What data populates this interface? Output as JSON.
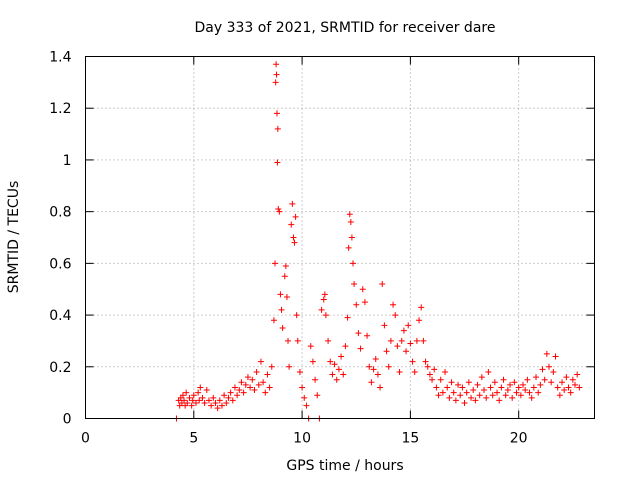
{
  "chart_data": {
    "type": "scatter",
    "title": "Day 333 of 2021, SRMTID for receiver dare",
    "xlabel": "GPS time / hours",
    "ylabel": "SRMTID / TECUs",
    "xlim": [
      0,
      23.5
    ],
    "ylim": [
      0,
      1.4
    ],
    "xticks": [
      0,
      5,
      10,
      15,
      20
    ],
    "xtick_labels": [
      "0",
      "5",
      "10",
      "15",
      "20"
    ],
    "yticks": [
      0,
      0.2,
      0.4,
      0.6,
      0.8,
      1.0,
      1.2,
      1.4
    ],
    "ytick_labels": [
      "0",
      "0.2",
      "0.4",
      "0.6",
      "0.8",
      "1",
      "1.2",
      "1.4"
    ],
    "grid": true,
    "marker": "+",
    "color": "#ff0000",
    "series": [
      {
        "name": "SRMTID",
        "points": [
          [
            4.2,
            0.0
          ],
          [
            4.3,
            0.07
          ],
          [
            4.35,
            0.05
          ],
          [
            4.4,
            0.08
          ],
          [
            4.45,
            0.06
          ],
          [
            4.5,
            0.09
          ],
          [
            4.55,
            0.07
          ],
          [
            4.6,
            0.05
          ],
          [
            4.65,
            0.1
          ],
          [
            4.7,
            0.06
          ],
          [
            4.8,
            0.08
          ],
          [
            4.9,
            0.05
          ],
          [
            4.95,
            0.07
          ],
          [
            5.0,
            0.09
          ],
          [
            5.1,
            0.06
          ],
          [
            5.2,
            0.1
          ],
          [
            5.25,
            0.07
          ],
          [
            5.3,
            0.12
          ],
          [
            5.4,
            0.08
          ],
          [
            5.5,
            0.06
          ],
          [
            5.6,
            0.11
          ],
          [
            5.7,
            0.07
          ],
          [
            5.8,
            0.05
          ],
          [
            5.9,
            0.08
          ],
          [
            6.0,
            0.06
          ],
          [
            6.1,
            0.04
          ],
          [
            6.2,
            0.07
          ],
          [
            6.3,
            0.05
          ],
          [
            6.4,
            0.09
          ],
          [
            6.5,
            0.06
          ],
          [
            6.6,
            0.08
          ],
          [
            6.7,
            0.1
          ],
          [
            6.8,
            0.07
          ],
          [
            6.9,
            0.12
          ],
          [
            7.0,
            0.09
          ],
          [
            7.1,
            0.11
          ],
          [
            7.2,
            0.14
          ],
          [
            7.3,
            0.1
          ],
          [
            7.4,
            0.13
          ],
          [
            7.5,
            0.16
          ],
          [
            7.6,
            0.12
          ],
          [
            7.7,
            0.15
          ],
          [
            7.8,
            0.11
          ],
          [
            7.9,
            0.18
          ],
          [
            8.0,
            0.13
          ],
          [
            8.1,
            0.22
          ],
          [
            8.2,
            0.14
          ],
          [
            8.3,
            0.1
          ],
          [
            8.4,
            0.17
          ],
          [
            8.5,
            0.12
          ],
          [
            8.6,
            0.2
          ],
          [
            8.7,
            0.38
          ],
          [
            8.75,
            0.6
          ],
          [
            8.78,
            1.3
          ],
          [
            8.8,
            1.37
          ],
          [
            8.82,
            1.33
          ],
          [
            8.84,
            1.18
          ],
          [
            8.86,
            0.99
          ],
          [
            8.88,
            1.12
          ],
          [
            8.9,
            0.81
          ],
          [
            8.95,
            0.8
          ],
          [
            9.0,
            0.48
          ],
          [
            9.05,
            0.42
          ],
          [
            9.1,
            0.35
          ],
          [
            9.2,
            0.55
          ],
          [
            9.25,
            0.59
          ],
          [
            9.3,
            0.47
          ],
          [
            9.35,
            0.3
          ],
          [
            9.4,
            0.2
          ],
          [
            9.5,
            0.75
          ],
          [
            9.55,
            0.83
          ],
          [
            9.6,
            0.7
          ],
          [
            9.65,
            0.68
          ],
          [
            9.7,
            0.78
          ],
          [
            9.75,
            0.4
          ],
          [
            9.8,
            0.3
          ],
          [
            9.9,
            0.18
          ],
          [
            10.0,
            0.12
          ],
          [
            10.1,
            0.08
          ],
          [
            10.2,
            0.05
          ],
          [
            10.3,
            0.0
          ],
          [
            10.4,
            0.28
          ],
          [
            10.5,
            0.22
          ],
          [
            10.6,
            0.15
          ],
          [
            10.7,
            0.09
          ],
          [
            10.8,
            0.0
          ],
          [
            10.9,
            0.42
          ],
          [
            11.0,
            0.46
          ],
          [
            11.05,
            0.48
          ],
          [
            11.1,
            0.4
          ],
          [
            11.2,
            0.3
          ],
          [
            11.3,
            0.22
          ],
          [
            11.4,
            0.17
          ],
          [
            11.5,
            0.21
          ],
          [
            11.6,
            0.15
          ],
          [
            11.7,
            0.19
          ],
          [
            11.8,
            0.24
          ],
          [
            11.9,
            0.17
          ],
          [
            12.0,
            0.28
          ],
          [
            12.1,
            0.39
          ],
          [
            12.15,
            0.66
          ],
          [
            12.2,
            0.79
          ],
          [
            12.25,
            0.76
          ],
          [
            12.3,
            0.7
          ],
          [
            12.35,
            0.6
          ],
          [
            12.4,
            0.52
          ],
          [
            12.5,
            0.44
          ],
          [
            12.6,
            0.33
          ],
          [
            12.7,
            0.27
          ],
          [
            12.8,
            0.5
          ],
          [
            12.9,
            0.45
          ],
          [
            13.0,
            0.32
          ],
          [
            13.1,
            0.2
          ],
          [
            13.2,
            0.14
          ],
          [
            13.3,
            0.19
          ],
          [
            13.4,
            0.23
          ],
          [
            13.5,
            0.17
          ],
          [
            13.6,
            0.12
          ],
          [
            13.7,
            0.52
          ],
          [
            13.8,
            0.36
          ],
          [
            13.9,
            0.26
          ],
          [
            14.0,
            0.2
          ],
          [
            14.1,
            0.3
          ],
          [
            14.2,
            0.44
          ],
          [
            14.3,
            0.4
          ],
          [
            14.4,
            0.28
          ],
          [
            14.5,
            0.18
          ],
          [
            14.6,
            0.3
          ],
          [
            14.7,
            0.34
          ],
          [
            14.8,
            0.26
          ],
          [
            14.9,
            0.36
          ],
          [
            15.0,
            0.29
          ],
          [
            15.1,
            0.22
          ],
          [
            15.2,
            0.18
          ],
          [
            15.3,
            0.3
          ],
          [
            15.4,
            0.38
          ],
          [
            15.5,
            0.43
          ],
          [
            15.6,
            0.3
          ],
          [
            15.7,
            0.22
          ],
          [
            15.8,
            0.2
          ],
          [
            15.9,
            0.17
          ],
          [
            16.0,
            0.15
          ],
          [
            16.1,
            0.19
          ],
          [
            16.2,
            0.12
          ],
          [
            16.3,
            0.09
          ],
          [
            16.4,
            0.15
          ],
          [
            16.5,
            0.1
          ],
          [
            16.6,
            0.18
          ],
          [
            16.7,
            0.12
          ],
          [
            16.8,
            0.08
          ],
          [
            16.9,
            0.14
          ],
          [
            17.0,
            0.1
          ],
          [
            17.1,
            0.07
          ],
          [
            17.2,
            0.13
          ],
          [
            17.3,
            0.09
          ],
          [
            17.4,
            0.12
          ],
          [
            17.5,
            0.06
          ],
          [
            17.6,
            0.1
          ],
          [
            17.7,
            0.14
          ],
          [
            17.8,
            0.08
          ],
          [
            17.9,
            0.11
          ],
          [
            18.0,
            0.07
          ],
          [
            18.1,
            0.13
          ],
          [
            18.2,
            0.09
          ],
          [
            18.3,
            0.16
          ],
          [
            18.4,
            0.11
          ],
          [
            18.5,
            0.08
          ],
          [
            18.6,
            0.18
          ],
          [
            18.7,
            0.12
          ],
          [
            18.8,
            0.09
          ],
          [
            18.9,
            0.14
          ],
          [
            19.0,
            0.1
          ],
          [
            19.1,
            0.07
          ],
          [
            19.2,
            0.12
          ],
          [
            19.3,
            0.15
          ],
          [
            19.4,
            0.09
          ],
          [
            19.5,
            0.11
          ],
          [
            19.6,
            0.13
          ],
          [
            19.7,
            0.08
          ],
          [
            19.8,
            0.14
          ],
          [
            19.9,
            0.1
          ],
          [
            20.0,
            0.12
          ],
          [
            20.1,
            0.09
          ],
          [
            20.2,
            0.13
          ],
          [
            20.3,
            0.11
          ],
          [
            20.4,
            0.15
          ],
          [
            20.5,
            0.1
          ],
          [
            20.6,
            0.08
          ],
          [
            20.7,
            0.12
          ],
          [
            20.8,
            0.16
          ],
          [
            20.9,
            0.1
          ],
          [
            21.0,
            0.13
          ],
          [
            21.1,
            0.19
          ],
          [
            21.2,
            0.15
          ],
          [
            21.3,
            0.25
          ],
          [
            21.4,
            0.2
          ],
          [
            21.5,
            0.14
          ],
          [
            21.6,
            0.18
          ],
          [
            21.7,
            0.24
          ],
          [
            21.8,
            0.12
          ],
          [
            21.9,
            0.09
          ],
          [
            22.0,
            0.14
          ],
          [
            22.1,
            0.11
          ],
          [
            22.2,
            0.16
          ],
          [
            22.3,
            0.12
          ],
          [
            22.4,
            0.1
          ],
          [
            22.5,
            0.15
          ],
          [
            22.6,
            0.13
          ],
          [
            22.7,
            0.17
          ],
          [
            22.8,
            0.12
          ]
        ]
      }
    ]
  }
}
